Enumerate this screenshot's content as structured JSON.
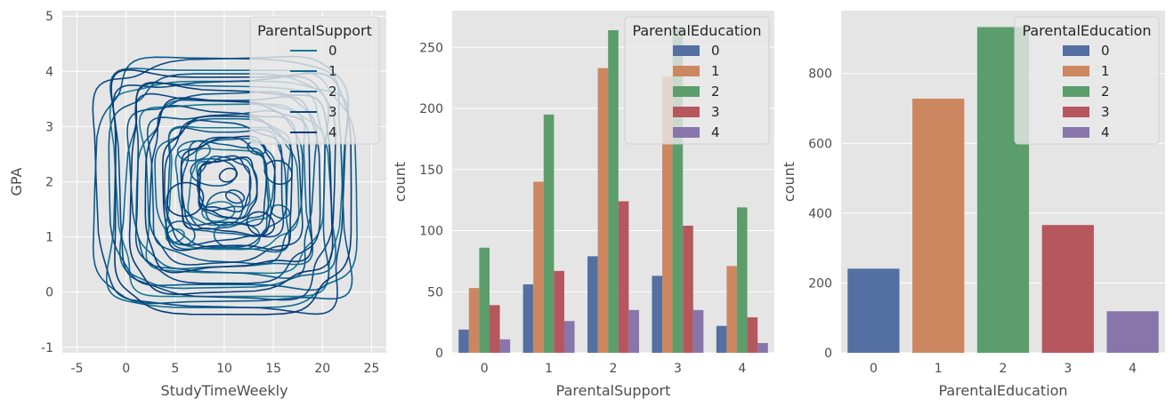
{
  "chart_data": [
    {
      "type": "kde-contour",
      "xlabel": "StudyTimeWeekly",
      "ylabel": "GPA",
      "xlim": [
        -6.5,
        26.5
      ],
      "ylim": [
        -1.1,
        5.1
      ],
      "xticks": [
        -5,
        0,
        5,
        10,
        15,
        20,
        25
      ],
      "yticks": [
        -1,
        0,
        1,
        2,
        3,
        4,
        5
      ],
      "grid": true,
      "legend": {
        "title": "ParentalSupport",
        "placement": "top-right",
        "entries": [
          {
            "label": "0",
            "color": "#1b7a92"
          },
          {
            "label": "1",
            "color": "#0f6a93"
          },
          {
            "label": "2",
            "color": "#0b5a8c"
          },
          {
            "label": "3",
            "color": "#0a4a85"
          },
          {
            "label": "4",
            "color": "#083b78"
          }
        ]
      },
      "contour_groups": [
        {
          "name": "0",
          "color": "#1b7a92",
          "cx": 10.5,
          "cy": 1.9,
          "hx": 11.5,
          "hy": 1.95,
          "levels": 4
        },
        {
          "name": "1",
          "color": "#0f6a93",
          "cx": 10.2,
          "cy": 1.9,
          "hx": 12.3,
          "hy": 2.15,
          "levels": 6
        },
        {
          "name": "2",
          "color": "#0b5a8c",
          "cx": 10.0,
          "cy": 1.95,
          "hx": 12.6,
          "hy": 2.2,
          "levels": 7
        },
        {
          "name": "3",
          "color": "#0a4a85",
          "cx": 10.0,
          "cy": 1.95,
          "hx": 12.6,
          "hy": 2.25,
          "levels": 7
        },
        {
          "name": "4",
          "color": "#083b78",
          "cx": 10.4,
          "cy": 1.9,
          "hx": 12.0,
          "hy": 2.15,
          "levels": 6
        }
      ]
    },
    {
      "type": "bar",
      "xlabel": "ParentalSupport",
      "ylabel": "count",
      "categories": [
        "0",
        "1",
        "2",
        "3",
        "4"
      ],
      "ylim": [
        0,
        280
      ],
      "yticks": [
        0,
        50,
        100,
        150,
        200,
        250
      ],
      "grid": true,
      "legend": {
        "title": "ParentalEducation",
        "placement": "top-right"
      },
      "series": [
        {
          "name": "0",
          "color": "#5470a3",
          "values": [
            19,
            56,
            79,
            63,
            22
          ]
        },
        {
          "name": "1",
          "color": "#cc8761",
          "values": [
            53,
            140,
            233,
            226,
            71
          ]
        },
        {
          "name": "2",
          "color": "#5b9d6b",
          "values": [
            86,
            195,
            264,
            265,
            119
          ]
        },
        {
          "name": "3",
          "color": "#b6565d",
          "values": [
            39,
            67,
            124,
            104,
            29
          ]
        },
        {
          "name": "4",
          "color": "#8876ab",
          "values": [
            11,
            26,
            35,
            35,
            8
          ]
        }
      ]
    },
    {
      "type": "bar",
      "xlabel": "ParentalEducation",
      "ylabel": "count",
      "categories": [
        "0",
        "1",
        "2",
        "3",
        "4"
      ],
      "values": [
        241,
        728,
        933,
        366,
        119
      ],
      "colors": [
        "#5470a3",
        "#cc8761",
        "#5b9d6b",
        "#b6565d",
        "#8876ab"
      ],
      "ylim": [
        0,
        980
      ],
      "yticks": [
        0,
        200,
        400,
        600,
        800
      ],
      "grid": true,
      "legend": {
        "title": "ParentalEducation",
        "placement": "top-right",
        "entries": [
          "0",
          "1",
          "2",
          "3",
          "4"
        ]
      }
    }
  ]
}
